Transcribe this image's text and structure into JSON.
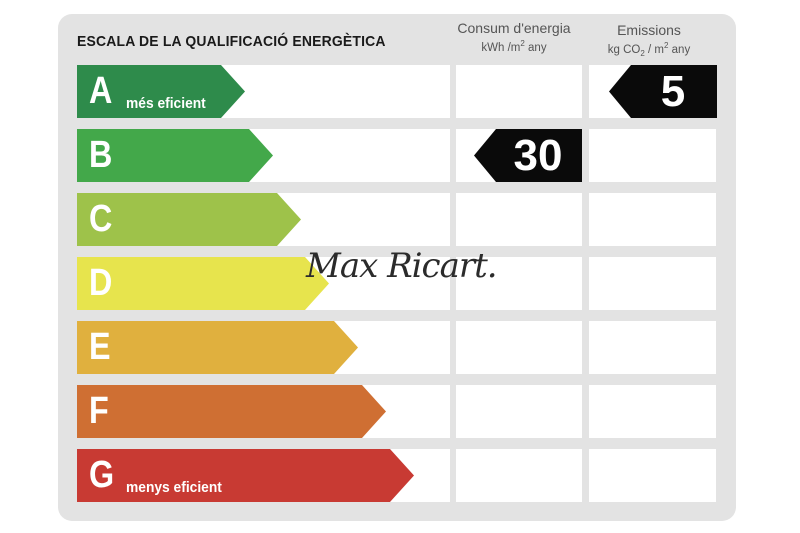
{
  "title": "ESCALA DE LA QUALIFICACIÓ ENERGÈTICA",
  "consumption_header": {
    "label": "Consum d'energia",
    "unit_prefix": "kWh /m",
    "unit_sup": "2",
    "unit_suffix": " any"
  },
  "emissions_header": {
    "label": "Emissions",
    "unit_prefix": "kg CO",
    "unit_sub": "2",
    "unit_mid": " / m",
    "unit_sup": "2",
    "unit_suffix": " any"
  },
  "ratings": [
    {
      "letter": "A",
      "desc": "més eficient",
      "color": "#2e8b4b"
    },
    {
      "letter": "B",
      "desc": "",
      "color": "#43a84a"
    },
    {
      "letter": "C",
      "desc": "",
      "color": "#9ec24a"
    },
    {
      "letter": "D",
      "desc": "",
      "color": "#e7e44d"
    },
    {
      "letter": "E",
      "desc": "",
      "color": "#e0b03e"
    },
    {
      "letter": "F",
      "desc": "",
      "color": "#cf6f33"
    },
    {
      "letter": "G",
      "desc": "menys eficient",
      "color": "#c83a33"
    }
  ],
  "consumption": {
    "rating": "B",
    "value": "30"
  },
  "emissions": {
    "rating": "A",
    "value": "5"
  },
  "watermark": "Max Ricart."
}
